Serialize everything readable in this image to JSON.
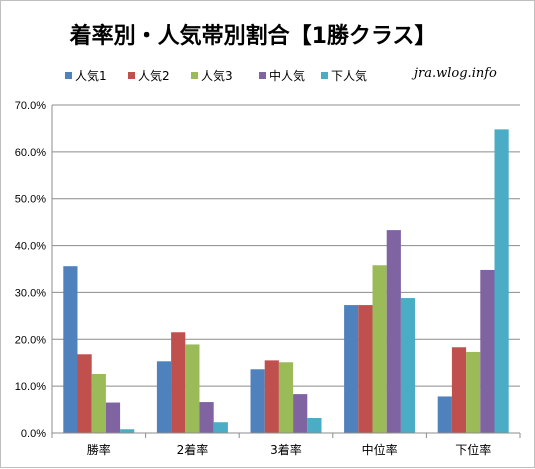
{
  "chart_data": {
    "type": "bar",
    "title": "着率別・人気帯別割合【1勝クラス】",
    "watermark": "jra.wlog.info",
    "categories": [
      "勝率",
      "2着率",
      "3着率",
      "中位率",
      "下位率"
    ],
    "series": [
      {
        "name": "人気1",
        "color": "#4f81bd",
        "values": [
          35.6,
          15.3,
          13.6,
          27.3,
          7.8
        ]
      },
      {
        "name": "人気2",
        "color": "#c0504d",
        "values": [
          16.8,
          21.5,
          15.5,
          27.3,
          18.3
        ]
      },
      {
        "name": "人気3",
        "color": "#9bbb59",
        "values": [
          12.6,
          18.9,
          15.1,
          35.8,
          17.3
        ]
      },
      {
        "name": "中人気",
        "color": "#8064a2",
        "values": [
          6.5,
          6.6,
          8.3,
          43.3,
          34.8
        ]
      },
      {
        "name": "下人気",
        "color": "#4bacc6",
        "values": [
          0.8,
          2.3,
          3.2,
          28.8,
          64.8
        ]
      }
    ],
    "ylim": [
      0,
      70
    ],
    "yticks": [
      "0.0%",
      "10.0%",
      "20.0%",
      "30.0%",
      "40.0%",
      "50.0%",
      "60.0%",
      "70.0%"
    ],
    "grid": true,
    "legend_position": "top-left"
  }
}
